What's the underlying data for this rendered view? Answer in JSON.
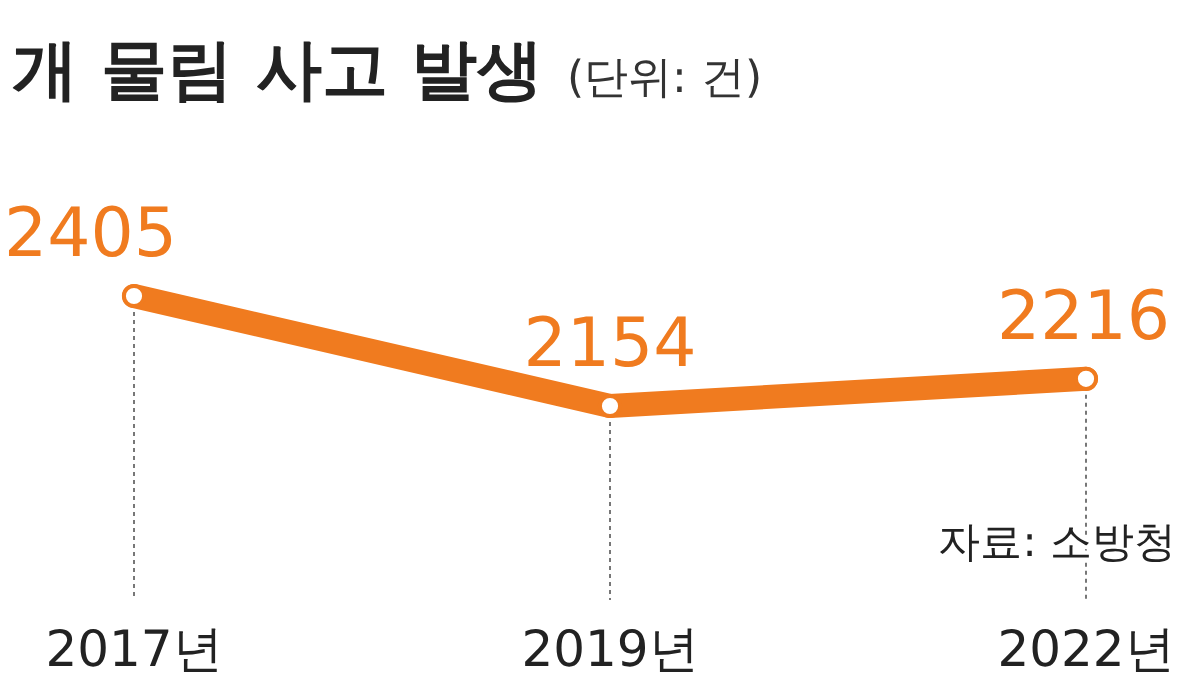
{
  "chart_data": {
    "type": "line",
    "title": "개 물림 사고 발생",
    "subtitle": "(단위: 건)",
    "categories": [
      "2017년",
      "2019년",
      "2022년"
    ],
    "series": [
      {
        "color": "#f07b1f",
        "values": [
          2405,
          2154,
          2216
        ]
      }
    ],
    "data_labels": true,
    "marker": "circle",
    "line_style": "solid",
    "grid": "x",
    "annotations": [
      "자료: 소방청"
    ]
  }
}
